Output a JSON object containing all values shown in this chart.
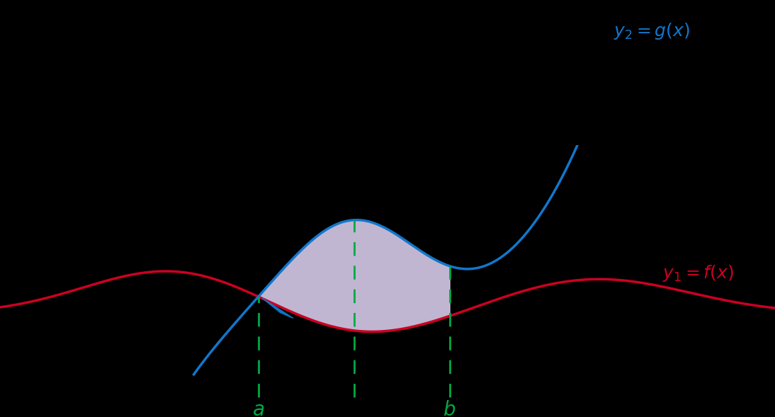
{
  "bg_color": "#000000",
  "fill_color": "#dcd0f0",
  "fill_alpha": 0.88,
  "f_color": "#cc0022",
  "g_color": "#1177cc",
  "dashed_color": "#00aa44",
  "label_f_fontsize": 18,
  "label_g_fontsize": 18,
  "xlim": [
    -4.5,
    5.5
  ],
  "ylim": [
    -3.8,
    5.5
  ]
}
